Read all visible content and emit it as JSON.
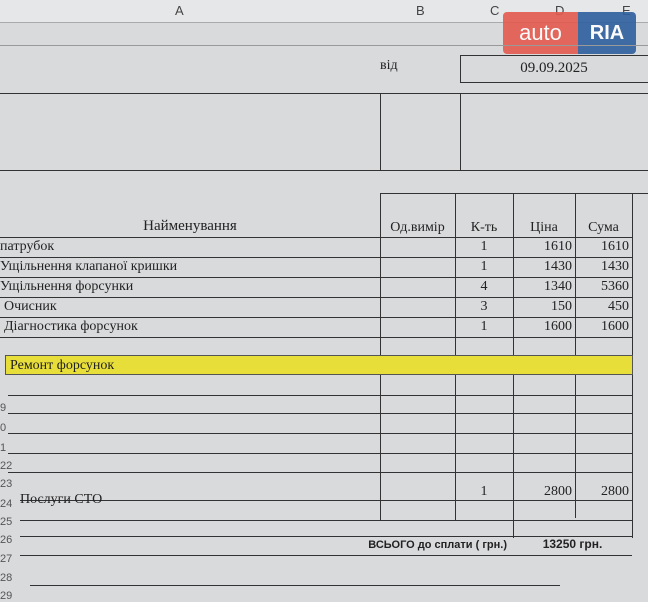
{
  "columns": [
    "A",
    "B",
    "C",
    "D",
    "E"
  ],
  "watermark": {
    "left": "auto",
    "right": "RIA",
    "brand_colors": [
      "#e35a4e",
      "#2f5f9e"
    ]
  },
  "date_label": "від",
  "date_value": "09.09.2025",
  "table": {
    "headers": [
      "Найменування",
      "Од.вимір",
      "К-ть",
      "Ціна",
      "Сума"
    ],
    "rows": [
      {
        "name": "патрубок",
        "qty": "1",
        "price": "1610",
        "sum": "1610"
      },
      {
        "name": "Ущільнення клапаної кришки",
        "qty": "1",
        "price": "1430",
        "sum": "1430"
      },
      {
        "name": "Ущільнення форсунки",
        "qty": "4",
        "price": "1340",
        "sum": "5360"
      },
      {
        "name": "Очисник",
        "qty": "3",
        "price": "150",
        "sum": "450"
      },
      {
        "name": "Діагностика форсунок",
        "qty": "1",
        "price": "1600",
        "sum": "1600"
      }
    ],
    "section": "Ремонт форсунок",
    "section_color": "#e8de3a",
    "service": {
      "name": "Послуги СТО",
      "qty": "1",
      "price": "2800",
      "sum": "2800"
    },
    "total_label": "ВСЬОГО до сплати ( грн.)",
    "total_value": "13250 грн."
  },
  "row_numbers": [
    "9",
    "0",
    "1",
    "22",
    "23",
    "24",
    "25",
    "26",
    "27",
    "28",
    "29"
  ]
}
